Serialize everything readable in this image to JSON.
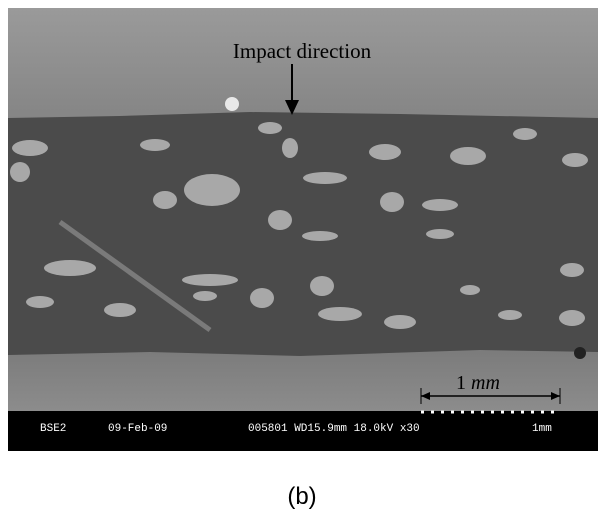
{
  "annotation": "Impact direction",
  "scale_bar": {
    "number": "1",
    "unit": "mm"
  },
  "info_bar": {
    "detector": "BSE2",
    "date": "09-Feb-09",
    "settings": "005801 WD15.9mm 18.0kV x30",
    "scale": "1mm"
  },
  "caption": "(b)"
}
